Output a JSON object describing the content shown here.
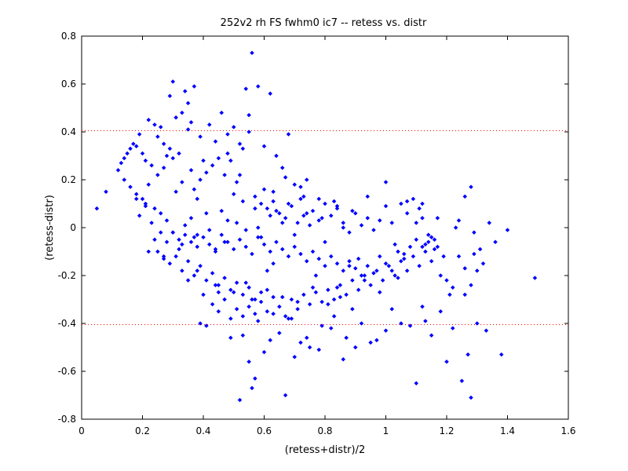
{
  "chart_data": {
    "type": "scatter",
    "title": "252v2 rh FS fwhm0 ic7 -- retess vs. distr",
    "xlabel": "(retess+distr)/2",
    "ylabel": "(retess-distr)",
    "xlim": [
      0,
      1.6
    ],
    "ylim": [
      -0.8,
      0.8
    ],
    "xticks": [
      0,
      0.2,
      0.4,
      0.6,
      0.8,
      1,
      1.2,
      1.4,
      1.6
    ],
    "yticks": [
      -0.8,
      -0.6,
      -0.4,
      -0.2,
      0,
      0.2,
      0.4,
      0.6,
      0.8
    ],
    "xtick_labels": [
      "0",
      "0.2",
      "0.4",
      "0.6",
      "0.8",
      "1",
      "1.2",
      "1.4",
      "1.6"
    ],
    "ytick_labels": [
      "-0.8",
      "-0.6",
      "-0.4",
      "-0.2",
      "0",
      "0.2",
      "0.4",
      "0.6",
      "0.8"
    ],
    "grid": false,
    "marker_color": "#0000ff",
    "reference_lines": {
      "y": [
        0.405,
        -0.405
      ],
      "style": "dotted",
      "color": "#ff0000"
    },
    "series": [
      {
        "marker": "diamond",
        "color": "#0000ff",
        "x": [
          0.05,
          0.08,
          0.12,
          0.13,
          0.14,
          0.15,
          0.16,
          0.17,
          0.18,
          0.19,
          0.2,
          0.21,
          0.22,
          0.23,
          0.24,
          0.25,
          0.26,
          0.27,
          0.28,
          0.29,
          0.14,
          0.16,
          0.18,
          0.2,
          0.22,
          0.25,
          0.27,
          0.3,
          0.32,
          0.35,
          0.19,
          0.21,
          0.24,
          0.26,
          0.28,
          0.31,
          0.33,
          0.36,
          0.38,
          0.4,
          0.29,
          0.3,
          0.33,
          0.35,
          0.37,
          0.34,
          0.31,
          0.36,
          0.39,
          0.42,
          0.44,
          0.46,
          0.48,
          0.5,
          0.52,
          0.54,
          0.56,
          0.58,
          0.6,
          0.62,
          0.55,
          0.53,
          0.48,
          0.45,
          0.43,
          0.41,
          0.39,
          0.37,
          0.47,
          0.51,
          0.57,
          0.59,
          0.61,
          0.63,
          0.65,
          0.67,
          0.69,
          0.71,
          0.73,
          0.75,
          0.64,
          0.66,
          0.68,
          0.7,
          0.72,
          0.74,
          0.76,
          0.78,
          0.8,
          0.82,
          0.84,
          0.86,
          0.88,
          0.9,
          0.92,
          0.94,
          0.96,
          0.98,
          1.0,
          1.02,
          0.3,
          0.32,
          0.34,
          0.36,
          0.38,
          0.4,
          0.42,
          0.44,
          0.46,
          0.48,
          0.5,
          0.52,
          0.54,
          0.56,
          0.58,
          0.6,
          0.62,
          0.64,
          0.66,
          0.68,
          0.25,
          0.27,
          0.29,
          0.31,
          0.33,
          0.35,
          0.37,
          0.39,
          0.41,
          0.43,
          0.45,
          0.47,
          0.49,
          0.51,
          0.53,
          0.55,
          0.57,
          0.59,
          0.61,
          0.63,
          0.7,
          0.72,
          0.74,
          0.76,
          0.78,
          0.8,
          0.82,
          0.84,
          0.86,
          0.88,
          0.9,
          0.92,
          0.94,
          0.96,
          0.98,
          1.0,
          1.02,
          1.04,
          1.06,
          1.08,
          1.1,
          1.12,
          1.14,
          1.16,
          1.18,
          1.2,
          1.22,
          1.24,
          1.26,
          1.28,
          1.3,
          1.32,
          1.1,
          1.12,
          1.13,
          1.15,
          1.05,
          1.07,
          1.09,
          1.11,
          0.4,
          0.43,
          0.45,
          0.47,
          0.49,
          0.51,
          0.53,
          0.55,
          0.57,
          0.59,
          0.61,
          0.63,
          0.65,
          0.67,
          0.69,
          0.71,
          0.73,
          0.75,
          0.77,
          0.79,
          0.81,
          0.83,
          0.85,
          0.87,
          0.89,
          0.91,
          0.93,
          0.95,
          0.97,
          0.99,
          1.01,
          1.03,
          1.05,
          1.07,
          1.09,
          1.11,
          1.13,
          1.15,
          1.17,
          1.19,
          0.52,
          0.55,
          0.57,
          0.62,
          0.67,
          0.7,
          0.74,
          0.78,
          0.82,
          0.86,
          0.9,
          0.95,
          1.0,
          1.05,
          1.1,
          1.15,
          1.2,
          1.25,
          1.28,
          1.3,
          0.53,
          0.56,
          0.6,
          0.65,
          0.68,
          0.72,
          0.75,
          0.79,
          0.83,
          0.87,
          0.92,
          0.97,
          1.02,
          1.08,
          1.13,
          1.18,
          1.22,
          1.27,
          1.33,
          1.38,
          0.39,
          0.41,
          0.45,
          0.49,
          0.56,
          0.58,
          0.63,
          0.69,
          0.76,
          0.81,
          0.85,
          0.89,
          0.93,
          0.98,
          1.04,
          1.12,
          1.21,
          1.26,
          1.29,
          1.36,
          0.35,
          0.38,
          0.44,
          0.5,
          0.54,
          0.61,
          0.66,
          0.71,
          0.77,
          0.84,
          0.88,
          0.91,
          0.96,
          1.03,
          1.06,
          1.14,
          1.16,
          1.23,
          1.31,
          1.49,
          0.18,
          0.21,
          0.23,
          0.26,
          0.28,
          0.32,
          0.34,
          0.37,
          0.42,
          0.46,
          0.48,
          0.5,
          0.53,
          0.58,
          0.6,
          0.64,
          0.68,
          0.73,
          0.79,
          0.83,
          0.22,
          0.24,
          0.27,
          0.3,
          0.33,
          0.36,
          0.38,
          0.41,
          0.44,
          0.47,
          0.51,
          0.54,
          0.57,
          0.59,
          0.62,
          0.66,
          0.7,
          0.74,
          0.8,
          0.86,
          0.55,
          0.52,
          0.49,
          0.63,
          0.67,
          0.72,
          0.78,
          0.84,
          0.89,
          0.94,
          1.0,
          1.07,
          1.12,
          1.17,
          1.24,
          1.29,
          1.34,
          1.4,
          1.28,
          1.26
        ],
        "y": [
          0.08,
          0.15,
          0.24,
          0.27,
          0.29,
          0.31,
          0.33,
          0.35,
          0.34,
          0.39,
          0.31,
          0.28,
          0.45,
          0.26,
          0.43,
          0.38,
          0.42,
          0.35,
          0.3,
          0.33,
          0.2,
          0.17,
          0.14,
          0.12,
          0.18,
          0.22,
          0.25,
          0.29,
          0.31,
          0.41,
          0.05,
          0.1,
          0.08,
          0.06,
          0.03,
          0.15,
          0.19,
          0.24,
          0.12,
          0.28,
          0.55,
          0.61,
          0.48,
          0.52,
          0.59,
          0.57,
          0.46,
          0.44,
          0.38,
          0.43,
          0.36,
          0.48,
          0.39,
          0.42,
          0.35,
          0.58,
          0.73,
          0.59,
          0.34,
          0.56,
          0.4,
          0.33,
          0.31,
          0.29,
          0.26,
          0.23,
          0.2,
          0.16,
          0.22,
          0.19,
          0.13,
          0.1,
          0.08,
          0.11,
          0.06,
          0.04,
          0.09,
          0.02,
          0.05,
          0.01,
          0.3,
          0.25,
          0.39,
          0.18,
          0.12,
          0.2,
          0.07,
          0.03,
          0.1,
          0.05,
          0.08,
          0.02,
          -0.02,
          0.06,
          0.01,
          0.04,
          -0.01,
          0.03,
          0.09,
          0.02,
          -0.02,
          -0.05,
          -0.03,
          -0.06,
          -0.08,
          -0.04,
          -0.07,
          -0.1,
          -0.03,
          -0.06,
          -0.09,
          -0.05,
          -0.08,
          -0.11,
          -0.04,
          -0.07,
          -0.1,
          -0.06,
          -0.09,
          -0.12,
          -0.1,
          -0.13,
          -0.15,
          -0.12,
          -0.18,
          -0.14,
          -0.2,
          -0.16,
          -0.22,
          -0.19,
          -0.24,
          -0.21,
          -0.26,
          -0.23,
          -0.28,
          -0.25,
          -0.3,
          -0.27,
          -0.18,
          -0.15,
          -0.08,
          -0.11,
          -0.14,
          -0.1,
          -0.13,
          -0.16,
          -0.12,
          -0.15,
          -0.18,
          -0.14,
          -0.17,
          -0.2,
          -0.16,
          -0.19,
          -0.12,
          -0.15,
          -0.18,
          -0.1,
          -0.13,
          -0.08,
          -0.05,
          -0.08,
          -0.06,
          -0.09,
          -0.2,
          -0.22,
          -0.25,
          -0.12,
          -0.28,
          -0.24,
          -0.18,
          -0.15,
          0.02,
          0.04,
          -0.07,
          -0.04,
          0.1,
          0.06,
          0.12,
          0.08,
          -0.28,
          -0.32,
          -0.35,
          -0.3,
          -0.38,
          -0.34,
          -0.37,
          -0.33,
          -0.36,
          -0.31,
          -0.35,
          -0.29,
          -0.33,
          -0.37,
          -0.3,
          -0.34,
          -0.28,
          -0.32,
          -0.27,
          -0.31,
          -0.26,
          -0.3,
          -0.24,
          -0.28,
          -0.22,
          -0.26,
          -0.2,
          -0.24,
          -0.18,
          -0.22,
          -0.16,
          -0.2,
          -0.14,
          -0.18,
          -0.12,
          -0.16,
          -0.1,
          -0.14,
          -0.08,
          -0.12,
          -0.72,
          -0.56,
          -0.63,
          -0.47,
          -0.7,
          -0.54,
          -0.46,
          -0.51,
          -0.42,
          -0.55,
          -0.5,
          -0.48,
          -0.43,
          -0.4,
          -0.65,
          -0.45,
          -0.56,
          -0.64,
          -0.71,
          -0.4,
          -0.45,
          -0.67,
          -0.52,
          -0.44,
          -0.38,
          -0.48,
          -0.5,
          -0.41,
          -0.37,
          -0.46,
          -0.4,
          -0.47,
          -0.34,
          -0.41,
          -0.39,
          -0.35,
          -0.42,
          -0.53,
          -0.43,
          -0.53,
          -0.4,
          -0.41,
          -0.27,
          -0.46,
          -0.3,
          -0.39,
          -0.36,
          -0.38,
          -0.25,
          -0.32,
          -0.29,
          -0.34,
          -0.22,
          -0.27,
          -0.21,
          -0.33,
          -0.28,
          -0.17,
          -0.11,
          -0.06,
          -0.22,
          -0.18,
          -0.24,
          -0.27,
          -0.23,
          -0.26,
          -0.29,
          -0.31,
          -0.2,
          -0.25,
          -0.16,
          -0.13,
          -0.19,
          -0.07,
          -0.11,
          -0.03,
          -0.05,
          0.0,
          -0.09,
          -0.21,
          0.12,
          0.09,
          0.02,
          -0.02,
          -0.06,
          -0.09,
          0.01,
          -0.04,
          -0.01,
          0.07,
          0.03,
          0.14,
          0.11,
          0.0,
          0.16,
          0.07,
          0.1,
          0.13,
          0.04,
          0.11,
          -0.1,
          -0.05,
          -0.12,
          -0.02,
          -0.07,
          0.04,
          -0.03,
          0.06,
          -0.09,
          -0.06,
          0.02,
          -0.01,
          0.08,
          -0.04,
          0.05,
          0.02,
          -0.03,
          0.06,
          -0.06,
          0.0,
          0.47,
          0.22,
          0.28,
          0.15,
          0.21,
          0.17,
          0.12,
          0.09,
          0.07,
          0.13,
          0.19,
          0.11,
          0.1,
          0.04,
          0.03,
          -0.02,
          0.02,
          -0.01,
          0.17,
          0.13
        ]
      }
    ]
  }
}
